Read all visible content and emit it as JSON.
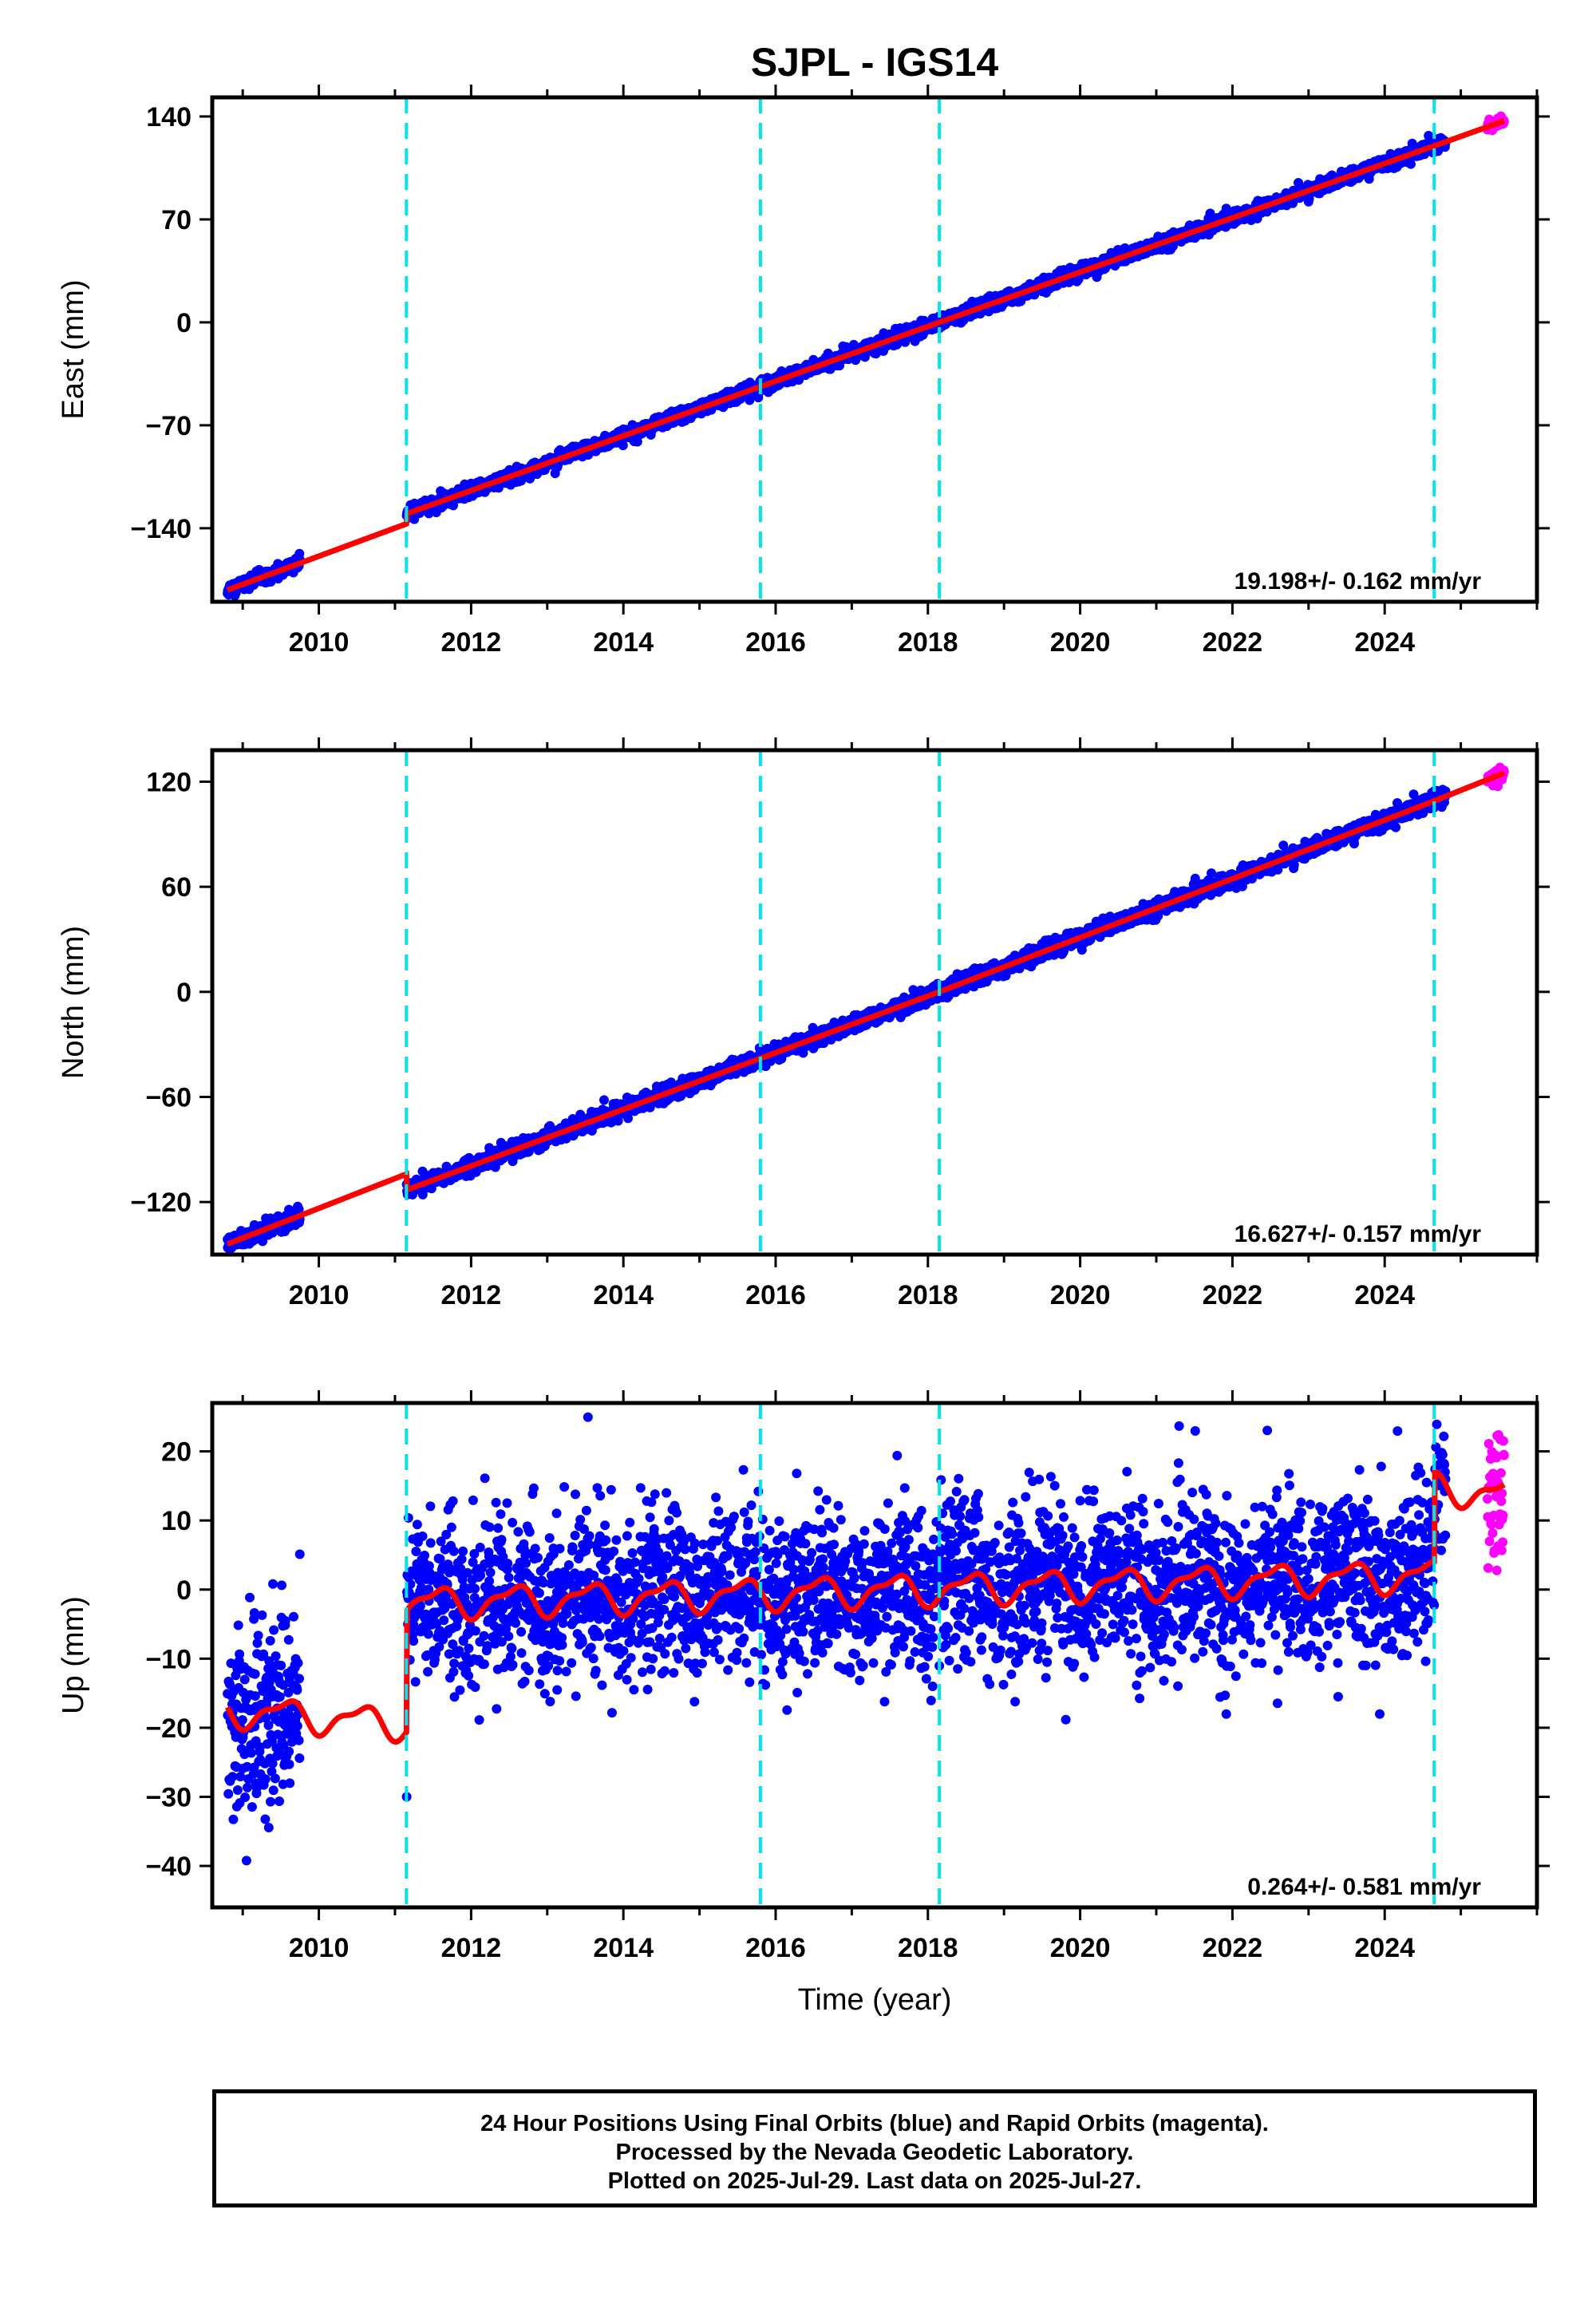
{
  "title": "SJPL - IGS14",
  "colors": {
    "final": "#0000ff",
    "rapid": "#ff00ff",
    "model": "#ff0000",
    "offsets": "#00e5ee",
    "frame": "#000000"
  },
  "footer": {
    "line1": "24 Hour Positions Using Final Orbits (blue) and Rapid Orbits (magenta).",
    "line2": "Processed by the Nevada Geodetic Laboratory.",
    "line3": "Plotted on 2025-Jul-29. Last data on 2025-Jul-27."
  },
  "chart_data": [
    {
      "type": "scatter",
      "name": "east",
      "ylabel": "East (mm)",
      "xlabel": "",
      "xlim": [
        2008.6,
        2026.0
      ],
      "ylim": [
        -190,
        153
      ],
      "x_ticks": [
        2010,
        2012,
        2014,
        2016,
        2018,
        2020,
        2022,
        2024
      ],
      "y_ticks": [
        -140,
        -70,
        0,
        70,
        140
      ],
      "velocity_label": "19.198+/- 0.162 mm/yr",
      "offset_epochs": [
        2011.15,
        2015.8,
        2018.15,
        2024.65
      ],
      "data_range": {
        "final": [
          2008.8,
          2024.8
        ],
        "rapid": [
          2025.35,
          2025.57
        ]
      },
      "model_keypoints": {
        "x": [
          2008.8,
          2011.15,
          2011.16,
          2018.15,
          2024.65,
          2025.57
        ],
        "y": [
          -182,
          -137,
          -130,
          0,
          120,
          137
        ]
      }
    },
    {
      "type": "scatter",
      "name": "north",
      "ylabel": "North (mm)",
      "xlabel": "",
      "xlim": [
        2008.6,
        2026.0
      ],
      "ylim": [
        -150,
        138
      ],
      "x_ticks": [
        2010,
        2012,
        2014,
        2016,
        2018,
        2020,
        2022,
        2024
      ],
      "y_ticks": [
        -120,
        -60,
        0,
        60,
        120
      ],
      "velocity_label": "16.627+/- 0.157 mm/yr",
      "offset_epochs": [
        2011.15,
        2015.8,
        2018.15,
        2024.65
      ],
      "data_range": {
        "final": [
          2008.8,
          2024.8
        ],
        "rapid": [
          2025.35,
          2025.57
        ]
      },
      "model_keypoints": {
        "x": [
          2008.8,
          2011.15,
          2011.16,
          2018.15,
          2024.65,
          2025.57
        ],
        "y": [
          -144,
          -104,
          -113,
          0,
          109,
          125
        ]
      }
    },
    {
      "type": "scatter",
      "name": "up",
      "ylabel": "Up (mm)",
      "xlabel": "Time (year)",
      "xlim": [
        2008.6,
        2026.0
      ],
      "ylim": [
        -46,
        27
      ],
      "x_ticks": [
        2010,
        2012,
        2014,
        2016,
        2018,
        2020,
        2022,
        2024
      ],
      "y_ticks": [
        -40,
        -30,
        -20,
        -10,
        0,
        10,
        20
      ],
      "velocity_label": "0.264+/- 0.581 mm/yr",
      "offset_epochs": [
        2011.15,
        2015.8,
        2018.15,
        2024.65
      ],
      "data_range": {
        "final": [
          2008.8,
          2024.8
        ],
        "rapid": [
          2025.35,
          2025.57
        ]
      },
      "model_keypoints": {
        "x": [
          2008.8,
          2011.15,
          2011.16,
          2024.65,
          2024.66,
          2025.57
        ],
        "y": [
          -17.5,
          -19.5,
          -2,
          2,
          15,
          13.5
        ]
      },
      "annual_amplitude_mm": 2.0
    }
  ]
}
